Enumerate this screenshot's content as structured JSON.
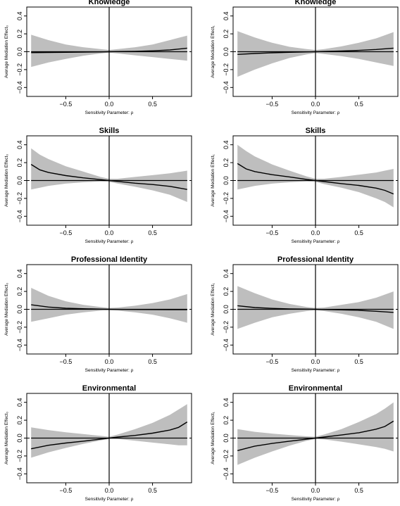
{
  "chart_data": [
    {
      "type": "line",
      "title": "Knowledge",
      "xlabel": "Sensitivity Parameter: ρ",
      "ylabel": "Average Mediation Effect₀",
      "xlim": [
        -0.95,
        0.95
      ],
      "ylim": [
        -0.5,
        0.5
      ],
      "xticks": [
        -0.5,
        0.0,
        0.5
      ],
      "xtick_labels": [
        "−0.5",
        "0.0",
        "0.5"
      ],
      "yticks": [
        -0.4,
        -0.2,
        0.0,
        0.2,
        0.4
      ],
      "ytick_labels": [
        "−0.4",
        "−0.2",
        "0.0",
        "0.2",
        "0.4"
      ],
      "x": [
        -0.9,
        -0.7,
        -0.5,
        -0.3,
        -0.1,
        0.0,
        0.1,
        0.3,
        0.5,
        0.7,
        0.9
      ],
      "estimate": [
        -0.01,
        -0.008,
        -0.006,
        -0.004,
        -0.002,
        0.0,
        0.002,
        0.005,
        0.01,
        0.02,
        0.04
      ],
      "ci_lower": [
        -0.17,
        -0.12,
        -0.08,
        -0.045,
        -0.02,
        -0.01,
        -0.02,
        -0.04,
        -0.06,
        -0.08,
        -0.1
      ],
      "ci_upper": [
        0.19,
        0.13,
        0.08,
        0.05,
        0.03,
        0.02,
        0.03,
        0.05,
        0.08,
        0.13,
        0.18
      ]
    },
    {
      "type": "line",
      "title": "Knowledge",
      "xlabel": "Sensitivity Parameter: ρ",
      "ylabel": "Average Mediation Effect₁",
      "xlim": [
        -0.95,
        0.95
      ],
      "ylim": [
        -0.5,
        0.5
      ],
      "xticks": [
        -0.5,
        0.0,
        0.5
      ],
      "xtick_labels": [
        "−0.5",
        "0.0",
        "0.5"
      ],
      "yticks": [
        -0.4,
        -0.2,
        0.0,
        0.2,
        0.4
      ],
      "ytick_labels": [
        "−0.4",
        "−0.2",
        "0.0",
        "0.2",
        "0.4"
      ],
      "x": [
        -0.9,
        -0.7,
        -0.5,
        -0.3,
        -0.1,
        0.0,
        0.1,
        0.3,
        0.5,
        0.7,
        0.9
      ],
      "estimate": [
        -0.03,
        -0.02,
        -0.012,
        -0.006,
        -0.002,
        0.0,
        0.003,
        0.008,
        0.015,
        0.025,
        0.04
      ],
      "ci_lower": [
        -0.28,
        -0.2,
        -0.13,
        -0.07,
        -0.03,
        -0.015,
        -0.025,
        -0.05,
        -0.08,
        -0.12,
        -0.16
      ],
      "ci_upper": [
        0.23,
        0.16,
        0.1,
        0.055,
        0.03,
        0.02,
        0.03,
        0.06,
        0.1,
        0.15,
        0.22
      ]
    },
    {
      "type": "line",
      "title": "Skills",
      "xlabel": "Sensitivity Parameter: ρ",
      "ylabel": "Average Mediation Effect₀",
      "xlim": [
        -0.95,
        0.95
      ],
      "ylim": [
        -0.5,
        0.5
      ],
      "xticks": [
        -0.5,
        0.0,
        0.5
      ],
      "xtick_labels": [
        "−0.5",
        "0.0",
        "0.5"
      ],
      "yticks": [
        -0.4,
        -0.2,
        0.0,
        0.2,
        0.4
      ],
      "ytick_labels": [
        "−0.4",
        "−0.2",
        "0.0",
        "0.2",
        "0.4"
      ],
      "x": [
        -0.9,
        -0.8,
        -0.7,
        -0.5,
        -0.3,
        -0.1,
        0.0,
        0.1,
        0.3,
        0.5,
        0.7,
        0.9
      ],
      "estimate": [
        0.18,
        0.12,
        0.09,
        0.055,
        0.03,
        0.01,
        0.0,
        -0.01,
        -0.03,
        -0.045,
        -0.065,
        -0.1
      ],
      "ci_lower": [
        -0.1,
        -0.08,
        -0.06,
        -0.035,
        -0.02,
        -0.01,
        -0.015,
        -0.035,
        -0.07,
        -0.11,
        -0.16,
        -0.24
      ],
      "ci_upper": [
        0.36,
        0.29,
        0.24,
        0.16,
        0.1,
        0.04,
        0.02,
        0.02,
        0.04,
        0.06,
        0.08,
        0.11
      ]
    },
    {
      "type": "line",
      "title": "Skills",
      "xlabel": "Sensitivity Parameter: ρ",
      "ylabel": "Average Mediation Effect₁",
      "xlim": [
        -0.95,
        0.95
      ],
      "ylim": [
        -0.5,
        0.5
      ],
      "xticks": [
        -0.5,
        0.0,
        0.5
      ],
      "xtick_labels": [
        "−0.5",
        "0.0",
        "0.5"
      ],
      "yticks": [
        -0.4,
        -0.2,
        0.0,
        0.2,
        0.4
      ],
      "ytick_labels": [
        "−0.4",
        "−0.2",
        "0.0",
        "0.2",
        "0.4"
      ],
      "x": [
        -0.9,
        -0.8,
        -0.7,
        -0.5,
        -0.3,
        -0.1,
        0.0,
        0.1,
        0.3,
        0.5,
        0.7,
        0.8,
        0.9
      ],
      "estimate": [
        0.19,
        0.13,
        0.1,
        0.065,
        0.04,
        0.012,
        0.0,
        -0.012,
        -0.035,
        -0.055,
        -0.085,
        -0.11,
        -0.15
      ],
      "ci_lower": [
        -0.1,
        -0.08,
        -0.06,
        -0.035,
        -0.02,
        -0.01,
        -0.015,
        -0.04,
        -0.08,
        -0.13,
        -0.2,
        -0.24,
        -0.3
      ],
      "ci_upper": [
        0.4,
        0.33,
        0.27,
        0.18,
        0.11,
        0.045,
        0.02,
        0.02,
        0.04,
        0.065,
        0.09,
        0.11,
        0.13
      ]
    },
    {
      "type": "line",
      "title": "Professional Identity",
      "xlabel": "Sensitivity Parameter: ρ",
      "ylabel": "Average Mediation Effect₀",
      "xlim": [
        -0.95,
        0.95
      ],
      "ylim": [
        -0.5,
        0.5
      ],
      "xticks": [
        -0.5,
        0.0,
        0.5
      ],
      "xtick_labels": [
        "−0.5",
        "0.0",
        "0.5"
      ],
      "yticks": [
        -0.4,
        -0.2,
        0.0,
        0.2,
        0.4
      ],
      "ytick_labels": [
        "−0.4",
        "−0.2",
        "0.0",
        "0.2",
        "0.4"
      ],
      "x": [
        -0.9,
        -0.7,
        -0.5,
        -0.3,
        -0.1,
        0.0,
        0.1,
        0.3,
        0.5,
        0.7,
        0.9
      ],
      "estimate": [
        0.05,
        0.025,
        0.012,
        0.006,
        0.002,
        0.0,
        -0.001,
        -0.002,
        -0.003,
        -0.004,
        -0.005
      ],
      "ci_lower": [
        -0.14,
        -0.1,
        -0.06,
        -0.035,
        -0.015,
        -0.01,
        -0.015,
        -0.035,
        -0.06,
        -0.1,
        -0.15
      ],
      "ci_upper": [
        0.24,
        0.15,
        0.09,
        0.05,
        0.025,
        0.015,
        0.02,
        0.04,
        0.07,
        0.11,
        0.17
      ]
    },
    {
      "type": "line",
      "title": "Professional Identity",
      "xlabel": "Sensitivity Parameter: ρ",
      "ylabel": "Average Mediation Effect₁",
      "xlim": [
        -0.95,
        0.95
      ],
      "ylim": [
        -0.5,
        0.5
      ],
      "xticks": [
        -0.5,
        0.0,
        0.5
      ],
      "xtick_labels": [
        "−0.5",
        "0.0",
        "0.5"
      ],
      "yticks": [
        -0.4,
        -0.2,
        0.0,
        0.2,
        0.4
      ],
      "ytick_labels": [
        "−0.4",
        "−0.2",
        "0.0",
        "0.2",
        "0.4"
      ],
      "x": [
        -0.9,
        -0.7,
        -0.5,
        -0.3,
        -0.1,
        0.0,
        0.1,
        0.3,
        0.5,
        0.7,
        0.9
      ],
      "estimate": [
        0.04,
        0.02,
        0.01,
        0.005,
        0.002,
        0.0,
        -0.002,
        -0.006,
        -0.012,
        -0.022,
        -0.035
      ],
      "ci_lower": [
        -0.22,
        -0.15,
        -0.09,
        -0.05,
        -0.02,
        -0.01,
        -0.02,
        -0.05,
        -0.09,
        -0.14,
        -0.22
      ],
      "ci_upper": [
        0.26,
        0.18,
        0.11,
        0.06,
        0.025,
        0.015,
        0.02,
        0.05,
        0.08,
        0.13,
        0.2
      ]
    },
    {
      "type": "line",
      "title": "Environmental",
      "xlabel": "Sensitivity Parameter: ρ",
      "ylabel": "Average Mediation Effect₀",
      "xlim": [
        -0.95,
        0.95
      ],
      "ylim": [
        -0.5,
        0.5
      ],
      "xticks": [
        -0.5,
        0.0,
        0.5
      ],
      "xtick_labels": [
        "−0.5",
        "0.0",
        "0.5"
      ],
      "yticks": [
        -0.4,
        -0.2,
        0.0,
        0.2,
        0.4
      ],
      "ytick_labels": [
        "−0.4",
        "−0.2",
        "0.0",
        "0.2",
        "0.4"
      ],
      "x": [
        -0.9,
        -0.7,
        -0.5,
        -0.3,
        -0.1,
        0.0,
        0.1,
        0.3,
        0.5,
        0.7,
        0.8,
        0.9
      ],
      "estimate": [
        -0.12,
        -0.08,
        -0.055,
        -0.035,
        -0.012,
        0.0,
        0.012,
        0.03,
        0.055,
        0.09,
        0.12,
        0.18
      ],
      "ci_lower": [
        -0.22,
        -0.16,
        -0.11,
        -0.065,
        -0.025,
        -0.01,
        -0.01,
        -0.03,
        -0.05,
        -0.07,
        -0.08,
        -0.08
      ],
      "ci_upper": [
        0.12,
        0.09,
        0.065,
        0.045,
        0.025,
        0.015,
        0.04,
        0.1,
        0.17,
        0.26,
        0.32,
        0.38
      ]
    },
    {
      "type": "line",
      "title": "Environmental",
      "xlabel": "Sensitivity Parameter: ρ",
      "ylabel": "Average Mediation Effect₁",
      "xlim": [
        -0.95,
        0.95
      ],
      "ylim": [
        -0.5,
        0.5
      ],
      "xticks": [
        -0.5,
        0.0,
        0.5
      ],
      "xtick_labels": [
        "−0.5",
        "0.0",
        "0.5"
      ],
      "yticks": [
        -0.4,
        -0.2,
        0.0,
        0.2,
        0.4
      ],
      "ytick_labels": [
        "−0.4",
        "−0.2",
        "0.0",
        "0.2",
        "0.4"
      ],
      "x": [
        -0.9,
        -0.7,
        -0.5,
        -0.3,
        -0.1,
        0.0,
        0.1,
        0.3,
        0.5,
        0.7,
        0.8,
        0.9
      ],
      "estimate": [
        -0.14,
        -0.09,
        -0.06,
        -0.035,
        -0.012,
        0.0,
        0.012,
        0.035,
        0.06,
        0.1,
        0.13,
        0.19
      ],
      "ci_lower": [
        -0.3,
        -0.22,
        -0.15,
        -0.085,
        -0.03,
        -0.01,
        -0.015,
        -0.04,
        -0.07,
        -0.1,
        -0.12,
        -0.15
      ],
      "ci_upper": [
        0.1,
        0.07,
        0.05,
        0.035,
        0.02,
        0.015,
        0.04,
        0.1,
        0.18,
        0.27,
        0.33,
        0.4
      ]
    }
  ]
}
